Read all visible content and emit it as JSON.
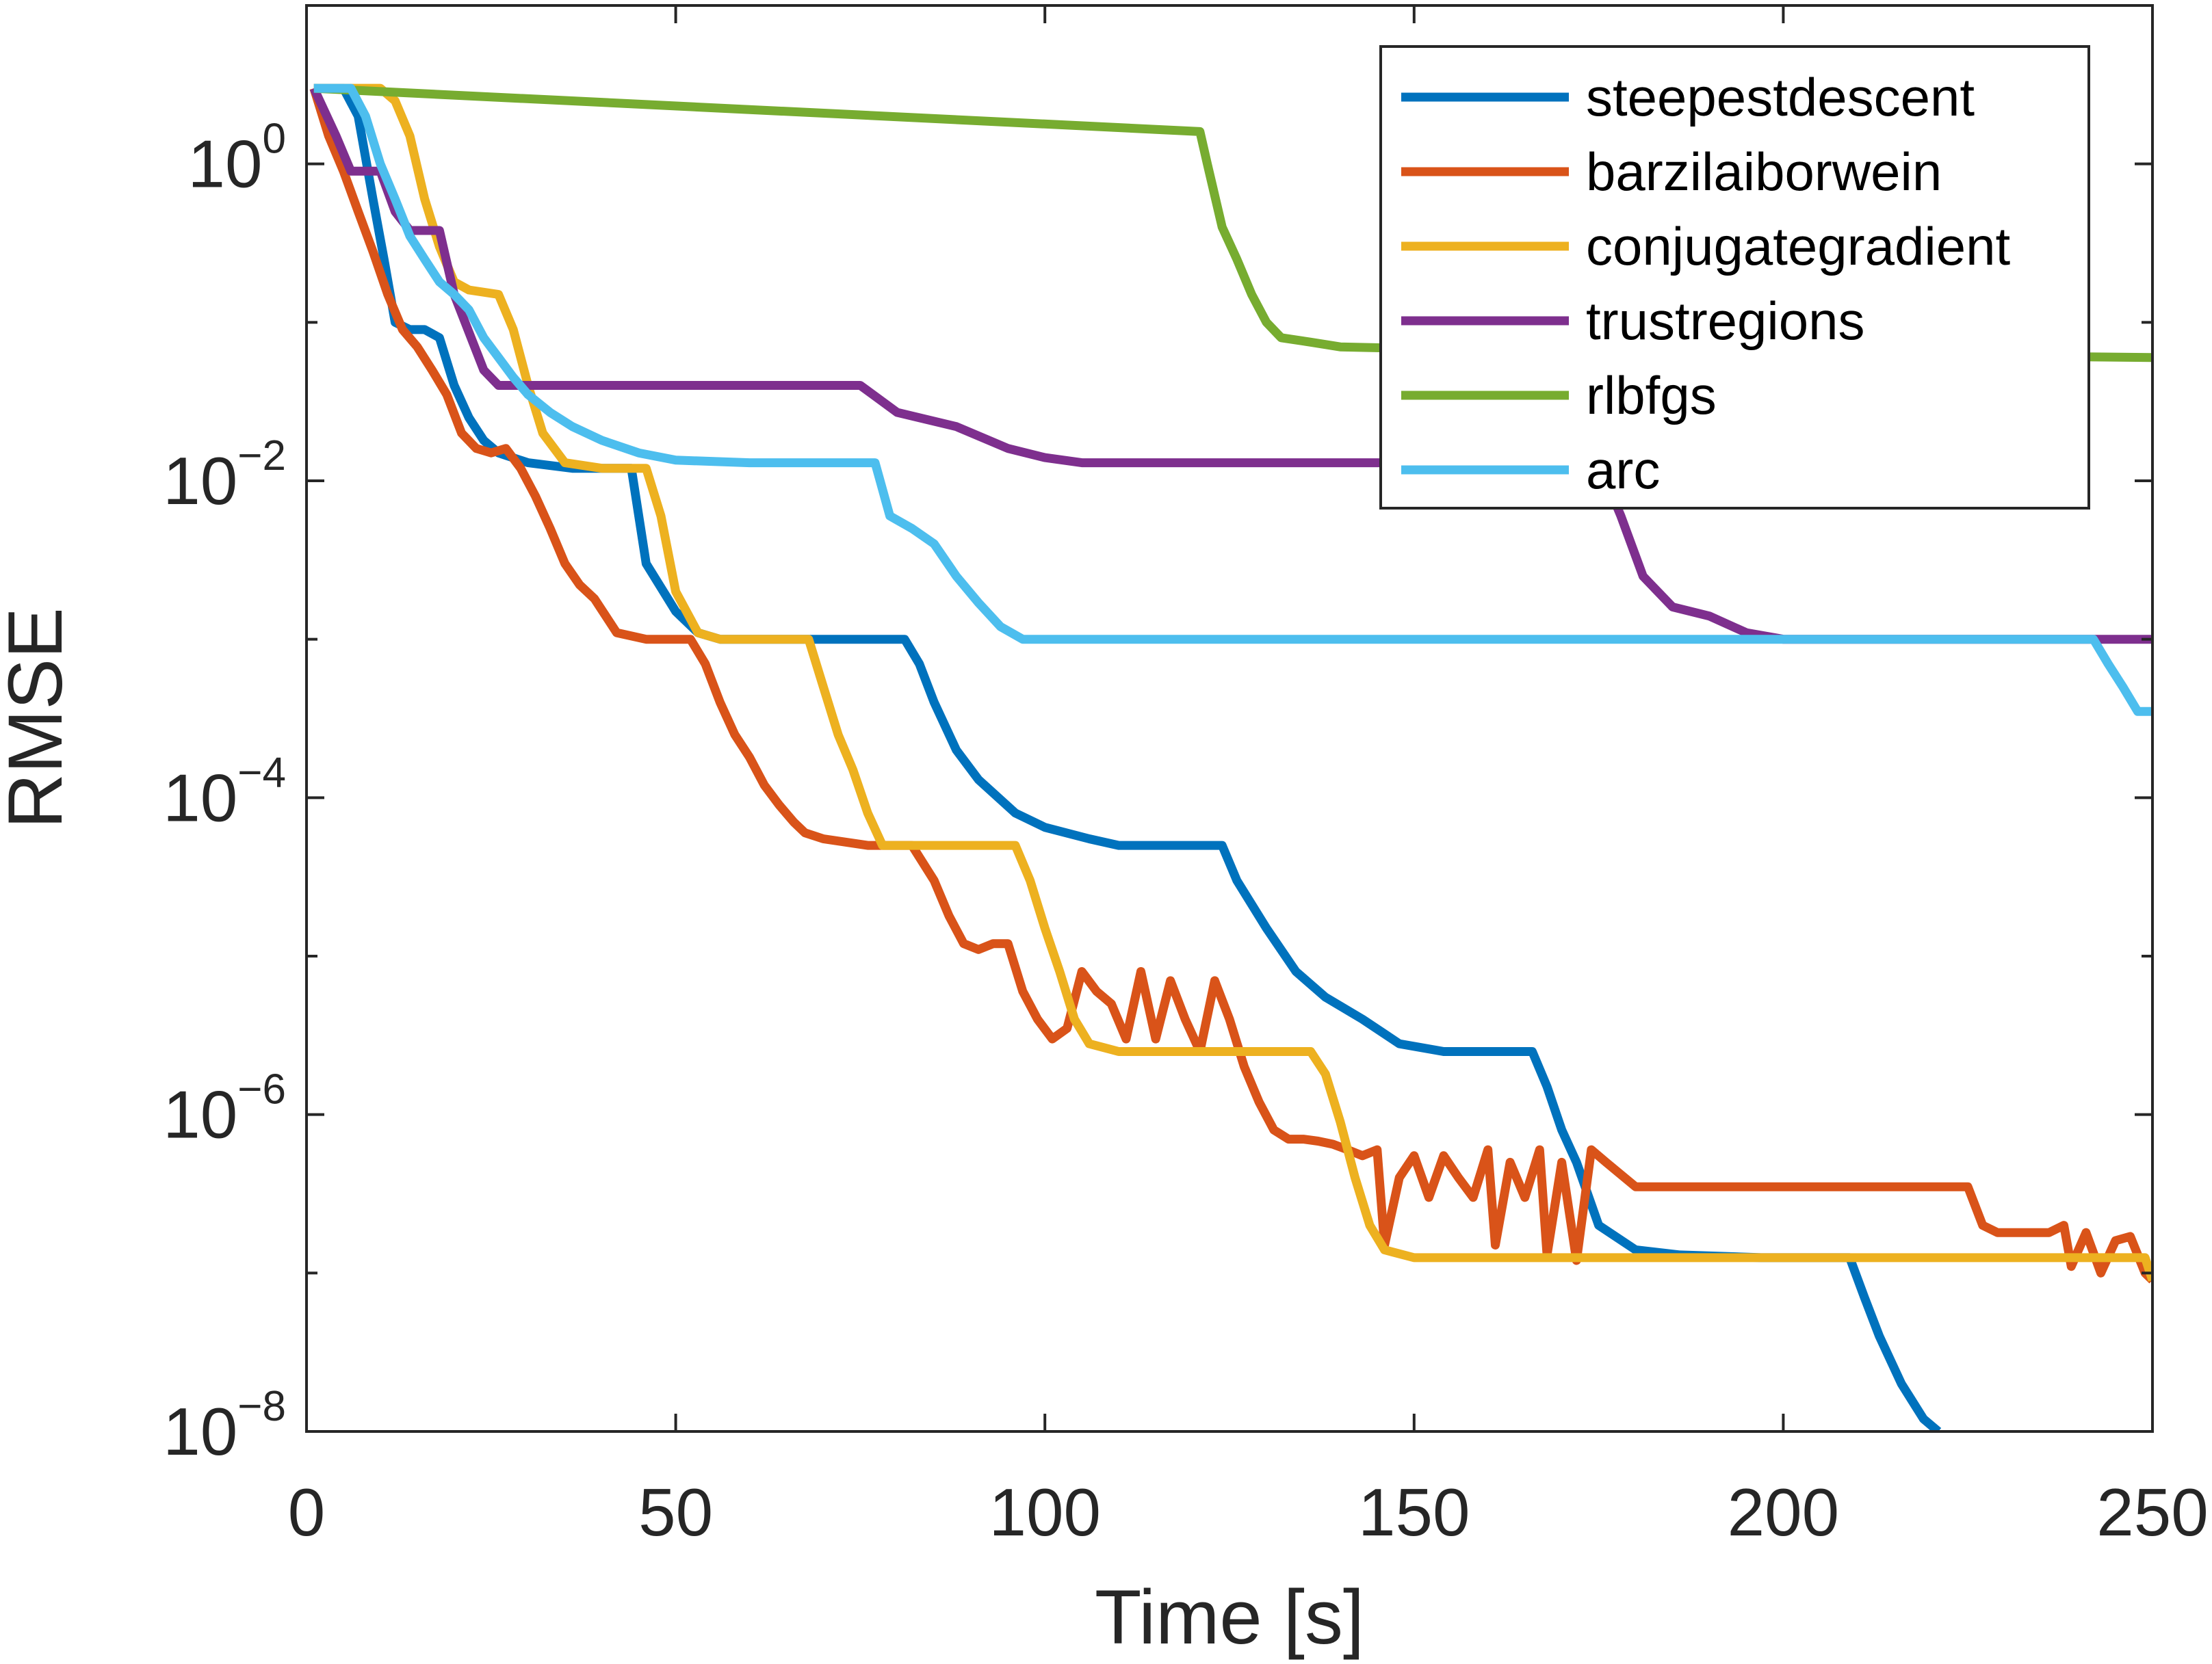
{
  "chart_data": {
    "type": "line",
    "title": "",
    "xlabel": "Time [s]",
    "ylabel": "RMSE",
    "xscale": "linear",
    "yscale": "log",
    "xlim": [
      0,
      250
    ],
    "ylim": [
      1e-08,
      10
    ],
    "grid": false,
    "legend_position": "top-right",
    "x_ticks": [
      {
        "value": 0,
        "label": "0"
      },
      {
        "value": 50,
        "label": "50"
      },
      {
        "value": 100,
        "label": "100"
      },
      {
        "value": 150,
        "label": "150"
      },
      {
        "value": 200,
        "label": "200"
      },
      {
        "value": 250,
        "label": "250"
      }
    ],
    "y_ticks": [
      {
        "exponent": 0,
        "base": "10",
        "power": "0"
      },
      {
        "exponent": -2,
        "base": "10",
        "power": "−2"
      },
      {
        "exponent": -4,
        "base": "10",
        "power": "−4"
      },
      {
        "exponent": -6,
        "base": "10",
        "power": "−6"
      },
      {
        "exponent": -8,
        "base": "10",
        "power": "−8"
      }
    ],
    "series": [
      {
        "name": "steepestdescent",
        "color": "#0072BD",
        "points": [
          [
            1,
            3
          ],
          [
            5,
            3
          ],
          [
            7,
            2
          ],
          [
            9,
            0.6
          ],
          [
            10.5,
            0.25
          ],
          [
            12,
            0.1
          ],
          [
            14,
            0.09
          ],
          [
            16,
            0.09
          ],
          [
            18,
            0.08
          ],
          [
            20,
            0.04
          ],
          [
            22,
            0.025
          ],
          [
            24,
            0.018
          ],
          [
            26,
            0.015
          ],
          [
            30,
            0.013
          ],
          [
            36,
            0.012
          ],
          [
            44,
            0.012
          ],
          [
            46,
            0.003
          ],
          [
            50,
            0.0015
          ],
          [
            53,
            0.0011
          ],
          [
            56,
            0.001
          ],
          [
            65,
            0.001
          ],
          [
            70,
            0.001
          ],
          [
            81,
            0.001
          ],
          [
            83,
            0.0007
          ],
          [
            85,
            0.0004
          ],
          [
            88,
            0.0002
          ],
          [
            91,
            0.00013
          ],
          [
            96,
            8e-05
          ],
          [
            100,
            6.5e-05
          ],
          [
            106,
            5.5e-05
          ],
          [
            110,
            5e-05
          ],
          [
            124,
            5e-05
          ],
          [
            126,
            3e-05
          ],
          [
            130,
            1.5e-05
          ],
          [
            134,
            8e-06
          ],
          [
            138,
            5.5e-06
          ],
          [
            143,
            4e-06
          ],
          [
            148,
            2.8e-06
          ],
          [
            154,
            2.5e-06
          ],
          [
            166,
            2.5e-06
          ],
          [
            168,
            1.5e-06
          ],
          [
            170,
            8e-07
          ],
          [
            172,
            5e-07
          ],
          [
            175,
            2e-07
          ],
          [
            180,
            1.4e-07
          ],
          [
            186,
            1.3e-07
          ],
          [
            197,
            1.25e-07
          ],
          [
            209,
            1.25e-07
          ],
          [
            211,
            7e-08
          ],
          [
            213,
            4e-08
          ],
          [
            216,
            2e-08
          ],
          [
            219,
            1.2e-08
          ],
          [
            221,
            1e-08
          ]
        ]
      },
      {
        "name": "barzilaiborwein",
        "color": "#D95319",
        "points": [
          [
            1,
            3
          ],
          [
            3,
            1.5
          ],
          [
            5,
            0.9
          ],
          [
            7,
            0.5
          ],
          [
            9,
            0.28
          ],
          [
            11,
            0.15
          ],
          [
            13,
            0.09
          ],
          [
            15,
            0.07
          ],
          [
            17,
            0.05
          ],
          [
            19,
            0.035
          ],
          [
            21,
            0.02
          ],
          [
            23,
            0.016
          ],
          [
            25,
            0.015
          ],
          [
            27,
            0.016
          ],
          [
            29,
            0.012
          ],
          [
            31,
            0.008
          ],
          [
            33,
            0.005
          ],
          [
            35,
            0.003
          ],
          [
            37,
            0.0022
          ],
          [
            39,
            0.0018
          ],
          [
            42,
            0.0011
          ],
          [
            46,
            0.001
          ],
          [
            52,
            0.001
          ],
          [
            54,
            0.0007
          ],
          [
            56,
            0.0004
          ],
          [
            58,
            0.00025
          ],
          [
            60,
            0.00018
          ],
          [
            62,
            0.00012
          ],
          [
            64,
            9e-05
          ],
          [
            66,
            7e-05
          ],
          [
            67.5,
            6e-05
          ],
          [
            70,
            5.5e-05
          ],
          [
            76,
            5e-05
          ],
          [
            82,
            5e-05
          ],
          [
            85,
            3e-05
          ],
          [
            87,
            1.8e-05
          ],
          [
            89,
            1.2e-05
          ],
          [
            91,
            1.1e-05
          ],
          [
            93,
            1.2e-05
          ],
          [
            95,
            1.2e-05
          ],
          [
            97,
            6e-06
          ],
          [
            99,
            4e-06
          ],
          [
            101,
            3e-06
          ],
          [
            103,
            3.5e-06
          ],
          [
            105,
            8e-06
          ],
          [
            107,
            6e-06
          ],
          [
            109,
            5e-06
          ],
          [
            111,
            3e-06
          ],
          [
            113,
            8e-06
          ],
          [
            115,
            3e-06
          ],
          [
            117,
            7e-06
          ],
          [
            119,
            4e-06
          ],
          [
            121,
            2.5e-06
          ],
          [
            123,
            7e-06
          ],
          [
            125,
            4e-06
          ],
          [
            127,
            2e-06
          ],
          [
            129,
            1.2e-06
          ],
          [
            131,
            8e-07
          ],
          [
            133,
            7e-07
          ],
          [
            135,
            7e-07
          ],
          [
            137,
            6.8e-07
          ],
          [
            139,
            6.5e-07
          ],
          [
            141,
            6e-07
          ],
          [
            143,
            5.5e-07
          ],
          [
            145,
            6e-07
          ],
          [
            146,
            1.5e-07
          ],
          [
            148,
            4e-07
          ],
          [
            150,
            5.5e-07
          ],
          [
            152,
            3e-07
          ],
          [
            154,
            5.5e-07
          ],
          [
            156,
            4e-07
          ],
          [
            158,
            3e-07
          ],
          [
            160,
            6e-07
          ],
          [
            161,
            1.5e-07
          ],
          [
            163,
            5e-07
          ],
          [
            165,
            3e-07
          ],
          [
            167,
            6e-07
          ],
          [
            168,
            1.3e-07
          ],
          [
            170,
            5e-07
          ],
          [
            172,
            1.2e-07
          ],
          [
            174,
            6e-07
          ],
          [
            176,
            5e-07
          ],
          [
            180,
            3.5e-07
          ],
          [
            186,
            3.5e-07
          ],
          [
            196,
            3.5e-07
          ],
          [
            206,
            3.5e-07
          ],
          [
            216,
            3.5e-07
          ],
          [
            225,
            3.5e-07
          ],
          [
            227,
            2e-07
          ],
          [
            229,
            1.8e-07
          ],
          [
            236,
            1.8e-07
          ],
          [
            238,
            2e-07
          ],
          [
            239,
            1.1e-07
          ],
          [
            241,
            1.8e-07
          ],
          [
            243,
            1e-07
          ],
          [
            245,
            1.6e-07
          ],
          [
            247,
            1.7e-07
          ],
          [
            249,
            1e-07
          ],
          [
            250,
            9e-08
          ]
        ]
      },
      {
        "name": "conjugategradient",
        "color": "#EDB120",
        "points": [
          [
            1,
            3
          ],
          [
            10,
            3
          ],
          [
            12,
            2.5
          ],
          [
            14,
            1.5
          ],
          [
            16,
            0.6
          ],
          [
            18,
            0.3
          ],
          [
            20,
            0.18
          ],
          [
            22,
            0.16
          ],
          [
            26,
            0.15
          ],
          [
            28,
            0.09
          ],
          [
            30,
            0.04
          ],
          [
            32,
            0.02
          ],
          [
            35,
            0.013
          ],
          [
            40,
            0.012
          ],
          [
            46,
            0.012
          ],
          [
            48,
            0.006
          ],
          [
            50,
            0.002
          ],
          [
            53,
            0.0011
          ],
          [
            56,
            0.001
          ],
          [
            68,
            0.001
          ],
          [
            70,
            0.0005
          ],
          [
            72,
            0.00025
          ],
          [
            74,
            0.00015
          ],
          [
            76,
            8e-05
          ],
          [
            78,
            5e-05
          ],
          [
            96,
            5e-05
          ],
          [
            98,
            3e-05
          ],
          [
            100,
            1.5e-05
          ],
          [
            102,
            8e-06
          ],
          [
            104,
            4e-06
          ],
          [
            106,
            2.8e-06
          ],
          [
            110,
            2.5e-06
          ],
          [
            136,
            2.5e-06
          ],
          [
            138,
            1.8e-06
          ],
          [
            140,
            9e-07
          ],
          [
            142,
            4e-07
          ],
          [
            144,
            2e-07
          ],
          [
            146,
            1.4e-07
          ],
          [
            150,
            1.25e-07
          ],
          [
            160,
            1.25e-07
          ],
          [
            200,
            1.25e-07
          ],
          [
            249,
            1.25e-07
          ],
          [
            250,
            9e-08
          ]
        ]
      },
      {
        "name": "trustregions",
        "color": "#7E2F8E",
        "points": [
          [
            1,
            3
          ],
          [
            4,
            1.5
          ],
          [
            6,
            0.9
          ],
          [
            10,
            0.9
          ],
          [
            12,
            0.5
          ],
          [
            14,
            0.38
          ],
          [
            18,
            0.38
          ],
          [
            20,
            0.15
          ],
          [
            24,
            0.05
          ],
          [
            26,
            0.04
          ],
          [
            30,
            0.04
          ],
          [
            50,
            0.04
          ],
          [
            70,
            0.04
          ],
          [
            75,
            0.04
          ],
          [
            80,
            0.027
          ],
          [
            88,
            0.022
          ],
          [
            95,
            0.016
          ],
          [
            100,
            0.014
          ],
          [
            105,
            0.013
          ],
          [
            120,
            0.013
          ],
          [
            145,
            0.013
          ],
          [
            165,
            0.013
          ],
          [
            175,
            0.013
          ],
          [
            178,
            0.006
          ],
          [
            181,
            0.0025
          ],
          [
            185,
            0.0016
          ],
          [
            190,
            0.0014
          ],
          [
            195,
            0.0011
          ],
          [
            200,
            0.001
          ],
          [
            210,
            0.001
          ],
          [
            220,
            0.001
          ],
          [
            250,
            0.001
          ]
        ]
      },
      {
        "name": "rlbfgs",
        "color": "#77AC30",
        "points": [
          [
            1,
            3
          ],
          [
            121,
            1.6
          ],
          [
            122,
            1
          ],
          [
            124,
            0.4
          ],
          [
            126,
            0.25
          ],
          [
            128,
            0.15
          ],
          [
            130,
            0.1
          ],
          [
            132,
            0.08
          ],
          [
            136,
            0.075
          ],
          [
            140,
            0.07
          ],
          [
            170,
            0.065
          ],
          [
            200,
            0.063
          ],
          [
            250,
            0.06
          ]
        ]
      },
      {
        "name": "arc",
        "color": "#4DBEEE",
        "points": [
          [
            1,
            3
          ],
          [
            6,
            3
          ],
          [
            8,
            2
          ],
          [
            10,
            1
          ],
          [
            12,
            0.6
          ],
          [
            14,
            0.35
          ],
          [
            16,
            0.25
          ],
          [
            18,
            0.18
          ],
          [
            20,
            0.15
          ],
          [
            22,
            0.12
          ],
          [
            24,
            0.08
          ],
          [
            26,
            0.06
          ],
          [
            28,
            0.045
          ],
          [
            30,
            0.035
          ],
          [
            33,
            0.027
          ],
          [
            36,
            0.022
          ],
          [
            40,
            0.018
          ],
          [
            45,
            0.015
          ],
          [
            50,
            0.0135
          ],
          [
            60,
            0.013
          ],
          [
            70,
            0.013
          ],
          [
            77,
            0.013
          ],
          [
            79,
            0.006
          ],
          [
            82,
            0.005
          ],
          [
            85,
            0.004
          ],
          [
            88,
            0.0025
          ],
          [
            91,
            0.0017
          ],
          [
            94,
            0.0012
          ],
          [
            97,
            0.001
          ],
          [
            110,
            0.001
          ],
          [
            150,
            0.001
          ],
          [
            200,
            0.001
          ],
          [
            242,
            0.001
          ],
          [
            244,
            0.0007
          ],
          [
            246,
            0.0005
          ],
          [
            248,
            0.00035
          ],
          [
            250,
            0.00035
          ]
        ]
      }
    ]
  }
}
